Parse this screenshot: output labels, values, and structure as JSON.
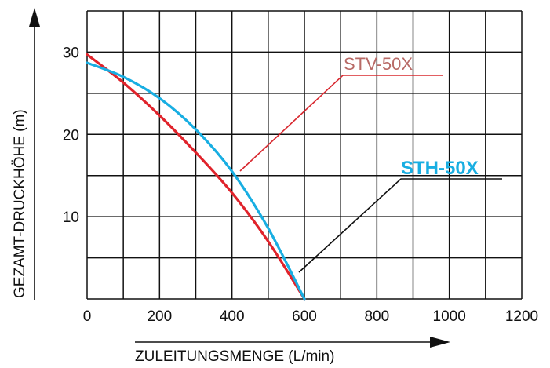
{
  "chart_data": {
    "type": "line",
    "title": "",
    "xlabel": "ZULEITUNGSMENGE (L/min)",
    "ylabel": "GEZAMT-DRUCKHÖHE (m)",
    "xlim": [
      0,
      1200
    ],
    "ylim": [
      0,
      35
    ],
    "x_ticks": [
      0,
      200,
      400,
      600,
      800,
      1000,
      1200
    ],
    "y_ticks": [
      10,
      20,
      30
    ],
    "grid": true,
    "series": [
      {
        "name": "STV-50X",
        "color": "#e0232b",
        "x": [
          0,
          100,
          200,
          300,
          400,
          500,
          600
        ],
        "y": [
          29.7,
          26.3,
          22.3,
          17.8,
          12.9,
          7.0,
          0
        ]
      },
      {
        "name": "STH-50X",
        "color": "#18aee2",
        "x": [
          0,
          100,
          200,
          300,
          400,
          500,
          600
        ],
        "y": [
          28.7,
          27.0,
          24.4,
          20.6,
          15.5,
          8.6,
          0
        ]
      }
    ],
    "annotations": [
      {
        "text": "STV-50X",
        "color": "#b86a66",
        "target_series": "STV-50X"
      },
      {
        "text": "STH-50X",
        "color": "#18aee2",
        "target_series": "STH-50X"
      }
    ]
  }
}
